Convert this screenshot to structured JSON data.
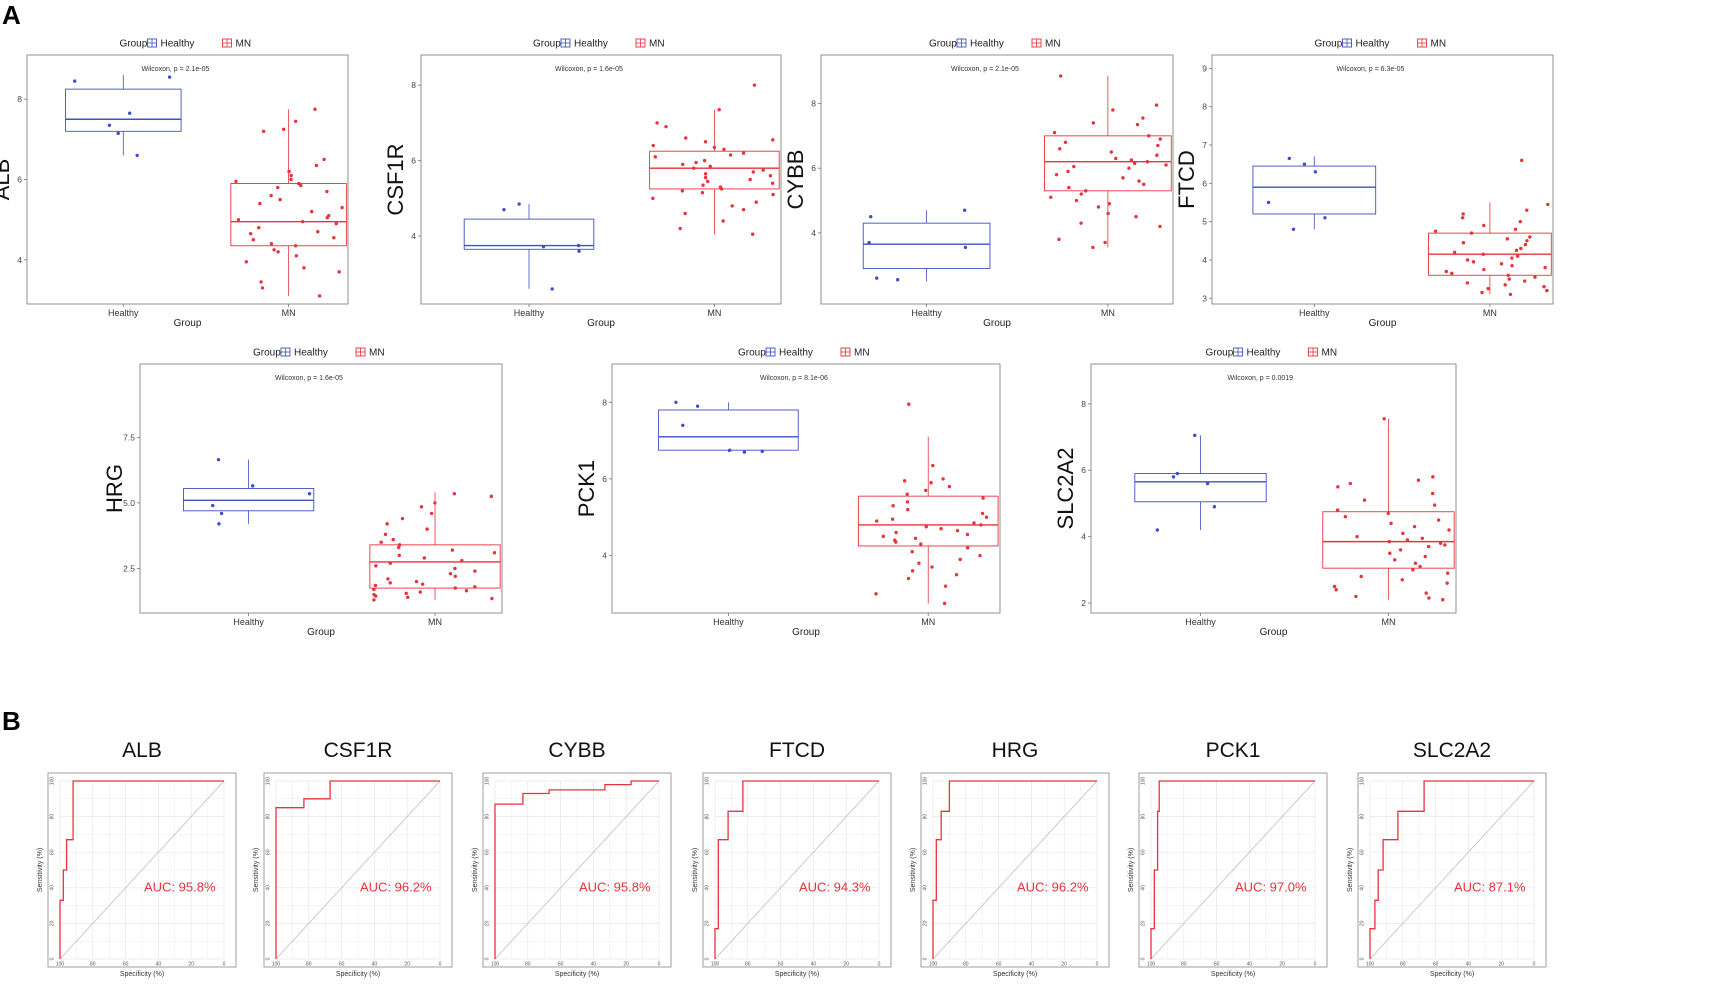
{
  "panel_labels": {
    "a": "A",
    "b": "B"
  },
  "colors": {
    "healthy": "#3f4fc7",
    "mn": "#e8323c",
    "grid": "#e6e6e6",
    "frame": "#999999",
    "diagonal": "#cccccc"
  },
  "chart_data": [
    {
      "type": "box",
      "panel": "A",
      "gene": "ALB",
      "title": "Wilcoxon, p = 2.1e-05",
      "legend": {
        "title": "Group",
        "items": [
          "Healthy",
          "MN"
        ]
      },
      "xlabel": "Group",
      "categories": [
        "Healthy",
        "MN"
      ],
      "ylim": [
        2.9,
        9.1
      ],
      "yticks": [
        {
          "v": 4,
          "label": "4"
        },
        {
          "v": 6,
          "label": "6"
        },
        {
          "v": 8,
          "label": "8"
        }
      ],
      "boxes": [
        {
          "min": 6.6,
          "q1": 7.2,
          "median": 7.5,
          "q3": 8.25,
          "max": 8.6
        },
        {
          "min": 3.1,
          "q1": 4.35,
          "median": 4.95,
          "q3": 5.9,
          "max": 7.75
        }
      ],
      "healthy_points": [
        8.55,
        8.45,
        7.65,
        7.35,
        7.15,
        6.6
      ],
      "mn_points": [
        7.75,
        7.45,
        7.25,
        7.2,
        6.5,
        6.35,
        6.2,
        6.1,
        6.0,
        5.95,
        5.9,
        5.85,
        5.8,
        5.7,
        5.6,
        5.5,
        5.4,
        5.3,
        5.2,
        5.1,
        5.05,
        5.0,
        4.95,
        4.9,
        4.8,
        4.7,
        4.65,
        4.55,
        4.5,
        4.4,
        4.35,
        4.25,
        4.2,
        4.1,
        3.95,
        3.8,
        3.7,
        3.45,
        3.3,
        3.1
      ]
    },
    {
      "type": "box",
      "panel": "A",
      "gene": "CSF1R",
      "title": "Wilcoxon, p = 1.6e-05",
      "legend": {
        "title": "Group",
        "items": [
          "Healthy",
          "MN"
        ]
      },
      "xlabel": "Group",
      "categories": [
        "Healthy",
        "MN"
      ],
      "ylim": [
        2.2,
        8.8
      ],
      "yticks": [
        {
          "v": 4,
          "label": "4"
        },
        {
          "v": 6,
          "label": "6"
        },
        {
          "v": 8,
          "label": "8"
        }
      ],
      "boxes": [
        {
          "min": 2.6,
          "q1": 3.65,
          "median": 3.75,
          "q3": 4.45,
          "max": 4.85
        },
        {
          "min": 4.05,
          "q1": 5.25,
          "median": 5.8,
          "q3": 6.25,
          "max": 7.35
        }
      ],
      "healthy_points": [
        4.85,
        4.7,
        3.75,
        3.72,
        3.6,
        2.6
      ],
      "mn_points": [
        8.0,
        7.35,
        7.0,
        6.9,
        6.6,
        6.55,
        6.5,
        6.4,
        6.35,
        6.3,
        6.2,
        6.15,
        6.1,
        6.0,
        5.95,
        5.9,
        5.85,
        5.8,
        5.75,
        5.7,
        5.65,
        5.6,
        5.55,
        5.5,
        5.45,
        5.4,
        5.35,
        5.3,
        5.25,
        5.2,
        5.15,
        5.1,
        5.0,
        4.9,
        4.8,
        4.7,
        4.6,
        4.4,
        4.2,
        4.05
      ]
    },
    {
      "type": "box",
      "panel": "A",
      "gene": "CYBB",
      "title": "Wilcoxon, p = 2.1e-05",
      "legend": {
        "title": "Group",
        "items": [
          "Healthy",
          "MN"
        ]
      },
      "xlabel": "Group",
      "categories": [
        "Healthy",
        "MN"
      ],
      "ylim": [
        1.8,
        9.5
      ],
      "yticks": [
        {
          "v": 4,
          "label": "4"
        },
        {
          "v": 6,
          "label": "6"
        },
        {
          "v": 8,
          "label": "8"
        }
      ],
      "boxes": [
        {
          "min": 2.5,
          "q1": 2.9,
          "median": 3.65,
          "q3": 4.3,
          "max": 4.7
        },
        {
          "min": 3.55,
          "q1": 5.3,
          "median": 6.2,
          "q3": 7.0,
          "max": 8.85
        }
      ],
      "healthy_points": [
        4.7,
        4.5,
        3.7,
        3.55,
        2.6,
        2.55
      ],
      "mn_points": [
        8.85,
        7.95,
        7.8,
        7.55,
        7.4,
        7.35,
        7.1,
        7.0,
        6.9,
        6.8,
        6.7,
        6.6,
        6.5,
        6.4,
        6.3,
        6.25,
        6.2,
        6.15,
        6.1,
        6.05,
        6.0,
        5.9,
        5.8,
        5.7,
        5.6,
        5.5,
        5.4,
        5.3,
        5.2,
        5.1,
        5.0,
        4.9,
        4.8,
        4.6,
        4.5,
        4.3,
        4.2,
        3.8,
        3.7,
        3.55
      ]
    },
    {
      "type": "box",
      "panel": "A",
      "gene": "FTCD",
      "title": "Wilcoxon, p = 6.3e-05",
      "legend": {
        "title": "Group",
        "items": [
          "Healthy",
          "MN"
        ]
      },
      "xlabel": "Group",
      "categories": [
        "Healthy",
        "MN"
      ],
      "ylim": [
        2.85,
        9.35
      ],
      "yticks": [
        {
          "v": 3,
          "label": "3"
        },
        {
          "v": 4,
          "label": "4"
        },
        {
          "v": 5,
          "label": "5"
        },
        {
          "v": 6,
          "label": "6"
        },
        {
          "v": 7,
          "label": "7"
        },
        {
          "v": 8,
          "label": "8"
        },
        {
          "v": 9,
          "label": "9"
        }
      ],
      "boxes": [
        {
          "min": 4.8,
          "q1": 5.2,
          "median": 5.9,
          "q3": 6.45,
          "max": 6.7
        },
        {
          "min": 3.1,
          "q1": 3.6,
          "median": 4.15,
          "q3": 4.7,
          "max": 5.5
        }
      ],
      "healthy_points": [
        6.65,
        6.5,
        6.3,
        5.5,
        5.1,
        4.8
      ],
      "mn_points": [
        6.6,
        5.45,
        5.3,
        5.2,
        5.1,
        5.0,
        4.9,
        4.8,
        4.75,
        4.7,
        4.6,
        4.55,
        4.5,
        4.45,
        4.4,
        4.3,
        4.25,
        4.2,
        4.15,
        4.1,
        4.05,
        4.0,
        3.95,
        3.9,
        3.85,
        3.8,
        3.75,
        3.7,
        3.65,
        3.6,
        3.55,
        3.5,
        3.45,
        3.4,
        3.35,
        3.3,
        3.25,
        3.2,
        3.15,
        3.1
      ]
    },
    {
      "type": "box",
      "panel": "A",
      "gene": "HRG",
      "title": "Wilcoxon, p = 1.6e-05",
      "legend": {
        "title": "Group",
        "items": [
          "Healthy",
          "MN"
        ]
      },
      "xlabel": "Group",
      "categories": [
        "Healthy",
        "MN"
      ],
      "ylim": [
        0.8,
        10.3
      ],
      "yticks": [
        {
          "v": 2.5,
          "label": "2.5"
        },
        {
          "v": 5.0,
          "label": "5.0"
        },
        {
          "v": 7.5,
          "label": "7.5"
        }
      ],
      "boxes": [
        {
          "min": 4.2,
          "q1": 4.7,
          "median": 5.1,
          "q3": 5.55,
          "max": 6.65
        },
        {
          "min": 1.3,
          "q1": 1.75,
          "median": 2.75,
          "q3": 3.4,
          "max": 5.4
        }
      ],
      "healthy_points": [
        6.65,
        5.65,
        5.35,
        4.9,
        4.6,
        4.2
      ],
      "mn_points": [
        5.35,
        5.25,
        5.0,
        4.85,
        4.6,
        4.4,
        4.2,
        4.0,
        3.8,
        3.6,
        3.5,
        3.4,
        3.3,
        3.2,
        3.1,
        3.0,
        2.9,
        2.8,
        2.7,
        2.6,
        2.5,
        2.4,
        2.3,
        2.2,
        2.1,
        2.0,
        1.95,
        1.9,
        1.85,
        1.8,
        1.75,
        1.7,
        1.65,
        1.6,
        1.55,
        1.5,
        1.45,
        1.4,
        1.35,
        1.3
      ]
    },
    {
      "type": "box",
      "panel": "A",
      "gene": "PCK1",
      "title": "Wilcoxon, p = 8.1e-06",
      "legend": {
        "title": "Group",
        "items": [
          "Healthy",
          "MN"
        ]
      },
      "xlabel": "Group",
      "categories": [
        "Healthy",
        "MN"
      ],
      "ylim": [
        2.5,
        9.0
      ],
      "yticks": [
        {
          "v": 4,
          "label": "4"
        },
        {
          "v": 6,
          "label": "6"
        },
        {
          "v": 8,
          "label": "8"
        }
      ],
      "boxes": [
        {
          "min": 6.7,
          "q1": 6.75,
          "median": 7.1,
          "q3": 7.8,
          "max": 8.0
        },
        {
          "min": 2.75,
          "q1": 4.25,
          "median": 4.8,
          "q3": 5.55,
          "max": 7.1
        }
      ],
      "healthy_points": [
        8.0,
        7.9,
        7.4,
        6.75,
        6.72,
        6.7
      ],
      "mn_points": [
        7.95,
        6.35,
        6.0,
        5.95,
        5.9,
        5.8,
        5.7,
        5.6,
        5.5,
        5.4,
        5.3,
        5.2,
        5.1,
        5.0,
        4.95,
        4.9,
        4.85,
        4.8,
        4.75,
        4.7,
        4.65,
        4.6,
        4.55,
        4.5,
        4.45,
        4.4,
        4.35,
        4.3,
        4.2,
        4.1,
        4.0,
        3.9,
        3.8,
        3.7,
        3.6,
        3.5,
        3.4,
        3.2,
        3.0,
        2.75
      ]
    },
    {
      "type": "box",
      "panel": "A",
      "gene": "SLC2A2",
      "title": "Wilcoxon, p = 0.0019",
      "legend": {
        "title": "Group",
        "items": [
          "Healthy",
          "MN"
        ]
      },
      "xlabel": "Group",
      "categories": [
        "Healthy",
        "MN"
      ],
      "ylim": [
        1.7,
        9.2
      ],
      "yticks": [
        {
          "v": 2,
          "label": "2"
        },
        {
          "v": 4,
          "label": "4"
        },
        {
          "v": 6,
          "label": "6"
        },
        {
          "v": 8,
          "label": "8"
        }
      ],
      "boxes": [
        {
          "min": 4.2,
          "q1": 5.05,
          "median": 5.65,
          "q3": 5.9,
          "max": 7.05
        },
        {
          "min": 2.1,
          "q1": 3.05,
          "median": 3.85,
          "q3": 4.75,
          "max": 7.55
        }
      ],
      "healthy_points": [
        7.05,
        5.9,
        5.8,
        5.6,
        4.9,
        4.2
      ],
      "mn_points": [
        7.55,
        5.8,
        5.7,
        5.6,
        5.5,
        5.3,
        5.1,
        4.95,
        4.8,
        4.7,
        4.6,
        4.5,
        4.4,
        4.3,
        4.2,
        4.1,
        4.0,
        3.95,
        3.9,
        3.85,
        3.8,
        3.75,
        3.7,
        3.6,
        3.5,
        3.4,
        3.3,
        3.2,
        3.1,
        3.0,
        2.9,
        2.8,
        2.7,
        2.6,
        2.5,
        2.4,
        2.3,
        2.2,
        2.15,
        2.1
      ]
    },
    {
      "type": "roc",
      "panel": "B",
      "gene": "ALB",
      "auc": "AUC: 95.8%",
      "xlabel": "Specificity (%)",
      "ylabel": "Sensitivity (%)",
      "x_ticks": [
        "100",
        "80",
        "60",
        "40",
        "20",
        "0"
      ],
      "y_ticks": [
        "0",
        "20",
        "40",
        "60",
        "80",
        "100"
      ],
      "curve": [
        [
          100,
          0
        ],
        [
          100,
          33
        ],
        [
          98,
          33
        ],
        [
          98,
          50
        ],
        [
          96,
          50
        ],
        [
          96,
          67
        ],
        [
          92,
          67
        ],
        [
          92,
          100
        ],
        [
          0,
          100
        ]
      ]
    },
    {
      "type": "roc",
      "panel": "B",
      "gene": "CSF1R",
      "auc": "AUC: 96.2%",
      "xlabel": "Specificity (%)",
      "ylabel": "Sensitivity (%)",
      "x_ticks": [
        "100",
        "80",
        "60",
        "40",
        "20",
        "0"
      ],
      "y_ticks": [
        "0",
        "20",
        "40",
        "60",
        "80",
        "100"
      ],
      "curve": [
        [
          100,
          0
        ],
        [
          100,
          85
        ],
        [
          83,
          85
        ],
        [
          83,
          90
        ],
        [
          67,
          90
        ],
        [
          67,
          100
        ],
        [
          0,
          100
        ]
      ]
    },
    {
      "type": "roc",
      "panel": "B",
      "gene": "CYBB",
      "auc": "AUC: 95.8%",
      "xlabel": "Specificity (%)",
      "ylabel": "Sensitivity (%)",
      "x_ticks": [
        "100",
        "80",
        "60",
        "40",
        "20",
        "0"
      ],
      "y_ticks": [
        "0",
        "20",
        "40",
        "60",
        "80",
        "100"
      ],
      "curve": [
        [
          100,
          0
        ],
        [
          100,
          87
        ],
        [
          83,
          87
        ],
        [
          83,
          93
        ],
        [
          67,
          93
        ],
        [
          67,
          95
        ],
        [
          33,
          95
        ],
        [
          33,
          98
        ],
        [
          17,
          98
        ],
        [
          17,
          100
        ],
        [
          0,
          100
        ]
      ]
    },
    {
      "type": "roc",
      "panel": "B",
      "gene": "FTCD",
      "auc": "AUC: 94.3%",
      "xlabel": "Specificity (%)",
      "ylabel": "Sensitivity (%)",
      "x_ticks": [
        "100",
        "80",
        "60",
        "40",
        "20",
        "0"
      ],
      "y_ticks": [
        "0",
        "20",
        "40",
        "60",
        "80",
        "100"
      ],
      "curve": [
        [
          100,
          0
        ],
        [
          100,
          17
        ],
        [
          98,
          17
        ],
        [
          98,
          67
        ],
        [
          92,
          67
        ],
        [
          92,
          83
        ],
        [
          83,
          83
        ],
        [
          83,
          100
        ],
        [
          0,
          100
        ]
      ]
    },
    {
      "type": "roc",
      "panel": "B",
      "gene": "HRG",
      "auc": "AUC: 96.2%",
      "xlabel": "Specificity (%)",
      "ylabel": "Sensitivity (%)",
      "x_ticks": [
        "100",
        "80",
        "60",
        "40",
        "20",
        "0"
      ],
      "y_ticks": [
        "0",
        "20",
        "40",
        "60",
        "80",
        "100"
      ],
      "curve": [
        [
          100,
          0
        ],
        [
          100,
          33
        ],
        [
          98,
          33
        ],
        [
          98,
          67
        ],
        [
          95,
          67
        ],
        [
          95,
          83
        ],
        [
          90,
          83
        ],
        [
          90,
          100
        ],
        [
          0,
          100
        ]
      ]
    },
    {
      "type": "roc",
      "panel": "B",
      "gene": "PCK1",
      "auc": "AUC: 97.0%",
      "xlabel": "Specificity (%)",
      "ylabel": "Sensitivity (%)",
      "x_ticks": [
        "100",
        "80",
        "60",
        "40",
        "20",
        "0"
      ],
      "y_ticks": [
        "0",
        "20",
        "40",
        "60",
        "80",
        "100"
      ],
      "curve": [
        [
          100,
          0
        ],
        [
          100,
          17
        ],
        [
          98,
          17
        ],
        [
          98,
          50
        ],
        [
          96,
          50
        ],
        [
          96,
          83
        ],
        [
          95,
          83
        ],
        [
          95,
          100
        ],
        [
          0,
          100
        ]
      ]
    },
    {
      "type": "roc",
      "panel": "B",
      "gene": "SLC2A2",
      "auc": "AUC: 87.1%",
      "xlabel": "Specificity (%)",
      "ylabel": "Sensitivity (%)",
      "x_ticks": [
        "100",
        "80",
        "60",
        "40",
        "20",
        "0"
      ],
      "y_ticks": [
        "0",
        "20",
        "40",
        "60",
        "80",
        "100"
      ],
      "curve": [
        [
          100,
          0
        ],
        [
          100,
          17
        ],
        [
          97,
          17
        ],
        [
          97,
          33
        ],
        [
          95,
          33
        ],
        [
          95,
          50
        ],
        [
          92,
          50
        ],
        [
          92,
          67
        ],
        [
          83,
          67
        ],
        [
          83,
          83
        ],
        [
          67,
          83
        ],
        [
          67,
          100
        ],
        [
          0,
          100
        ]
      ]
    }
  ]
}
